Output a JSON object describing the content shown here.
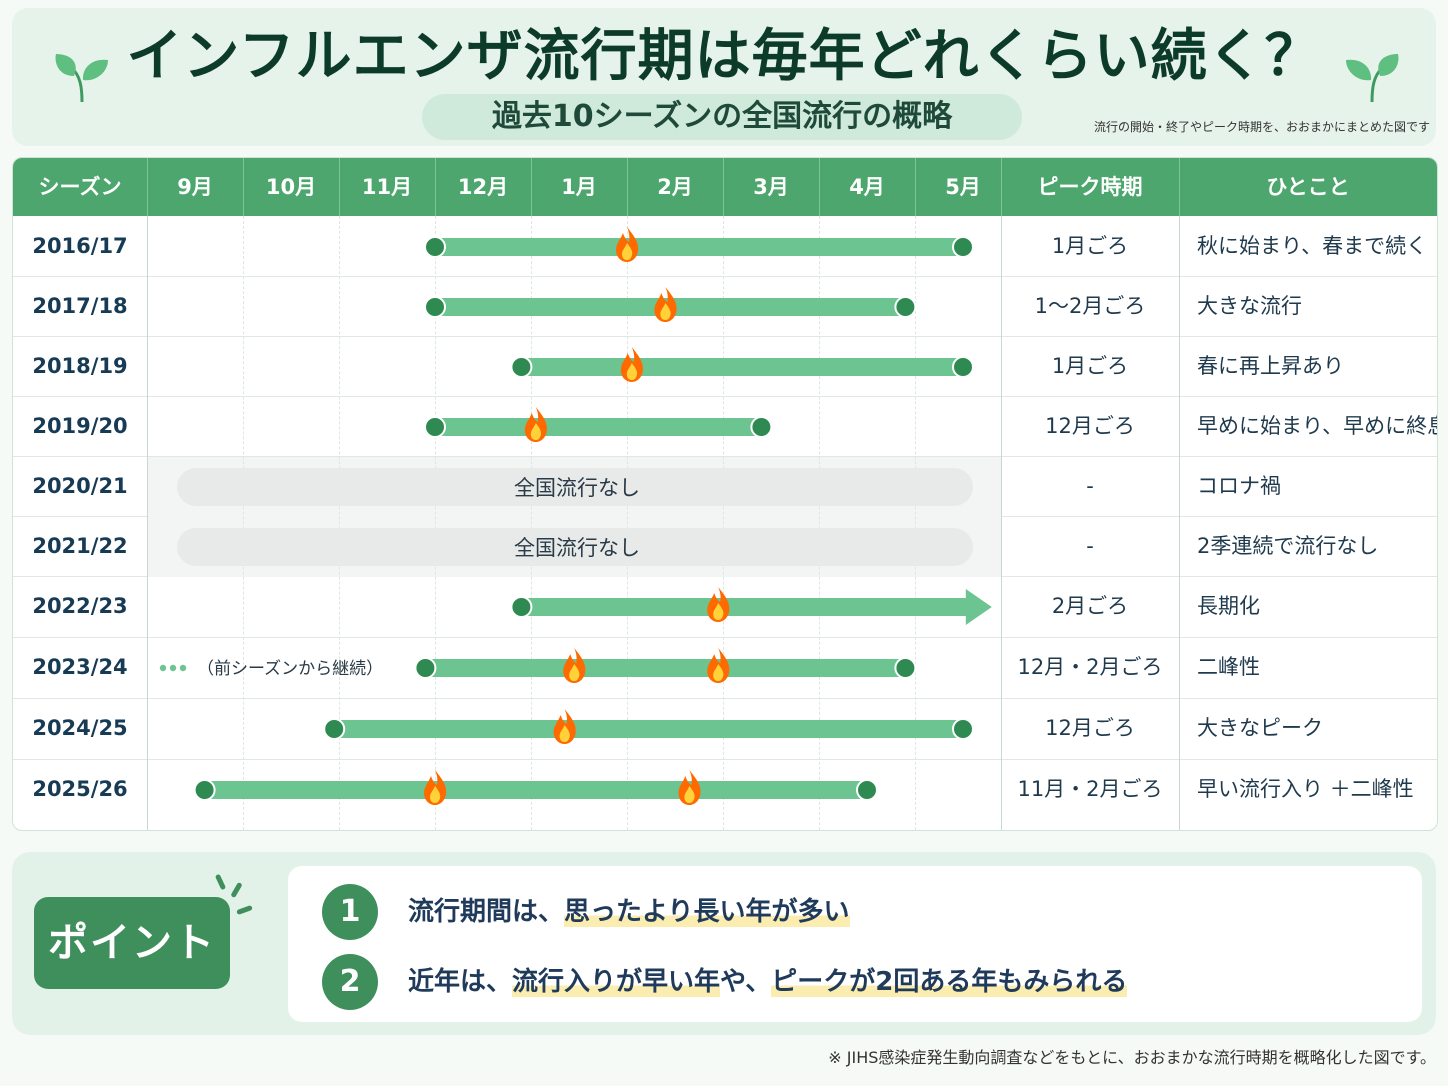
{
  "header": {
    "title": "インフルエンザ流行期は毎年どれくらい続く？",
    "subtitle": "過去10シーズンの全国流行の概略",
    "note": "流行の開始・終了やピーク時期を、おおまかにまとめた図です"
  },
  "table": {
    "columns": {
      "season": "シーズン",
      "peak": "ピーク時期",
      "comment": "ひとこと"
    },
    "months": [
      "9月",
      "10月",
      "11月",
      "12月",
      "1月",
      "2月",
      "3月",
      "4月",
      "5月"
    ],
    "no_epidemic_label": "全国流行なし",
    "carryover_label": "（前シーズンから継続）"
  },
  "chart_data": {
    "type": "gantt",
    "x_axis": "month (index 0 = 9月 … 8 = 5月)",
    "rows": [
      {
        "season": "2016/17",
        "start": 3.0,
        "end": 8.5,
        "peaks": [
          5.0
        ],
        "peak_label": "1月ごろ",
        "comment": "秋に始まり、春まで続く"
      },
      {
        "season": "2017/18",
        "start": 3.0,
        "end": 7.9,
        "peaks": [
          5.4
        ],
        "peak_label": "1〜2月ごろ",
        "comment": "大きな流行"
      },
      {
        "season": "2018/19",
        "start": 3.9,
        "end": 8.5,
        "peaks": [
          5.05
        ],
        "peak_label": "1月ごろ",
        "comment": "春に再上昇あり"
      },
      {
        "season": "2019/20",
        "start": 3.0,
        "end": 6.4,
        "peaks": [
          4.05
        ],
        "peak_label": "12月ごろ",
        "comment": "早めに始まり、早めに終息"
      },
      {
        "season": "2020/21",
        "none": true,
        "peak_label": "-",
        "comment": "コロナ禍"
      },
      {
        "season": "2021/22",
        "none": true,
        "peak_label": "-",
        "comment": "2季連続で流行なし"
      },
      {
        "season": "2022/23",
        "start": 3.9,
        "end": 8.8,
        "arrow": true,
        "peaks": [
          5.95
        ],
        "peak_label": "2月ごろ",
        "comment": "長期化"
      },
      {
        "season": "2023/24",
        "start": 2.9,
        "end": 7.9,
        "carryover": true,
        "peaks": [
          4.45,
          5.95
        ],
        "peak_label": "12月・2月ごろ",
        "comment": "二峰性"
      },
      {
        "season": "2024/25",
        "start": 1.95,
        "end": 8.5,
        "peaks": [
          4.35
        ],
        "peak_label": "12月ごろ",
        "comment": "大きなピーク"
      },
      {
        "season": "2025/26",
        "start": 0.6,
        "end": 7.5,
        "peaks": [
          3.0,
          5.65
        ],
        "peak_label": "11月・2月ごろ",
        "comment": "早い流行入り ＋二峰性"
      }
    ]
  },
  "points": {
    "label": "ポイント",
    "items": [
      {
        "num": "1",
        "text_plain": "流行期間は、",
        "text_highlight": "思ったより長い年が多い"
      },
      {
        "num": "2",
        "text_plain": "近年は、",
        "text_highlight_a": "流行入りが早い年",
        "text_mid": "や、",
        "text_highlight_b": "ピークが2回ある年もみられる"
      }
    ]
  },
  "footnote": "※ JIHS感染症発生動向調査などをもとに、おおまかな流行時期を概略化した図です。",
  "colors": {
    "bar": "#6cc590",
    "dot": "#2f8a52",
    "header": "#4ca66d",
    "flame": "#ff6a00"
  }
}
